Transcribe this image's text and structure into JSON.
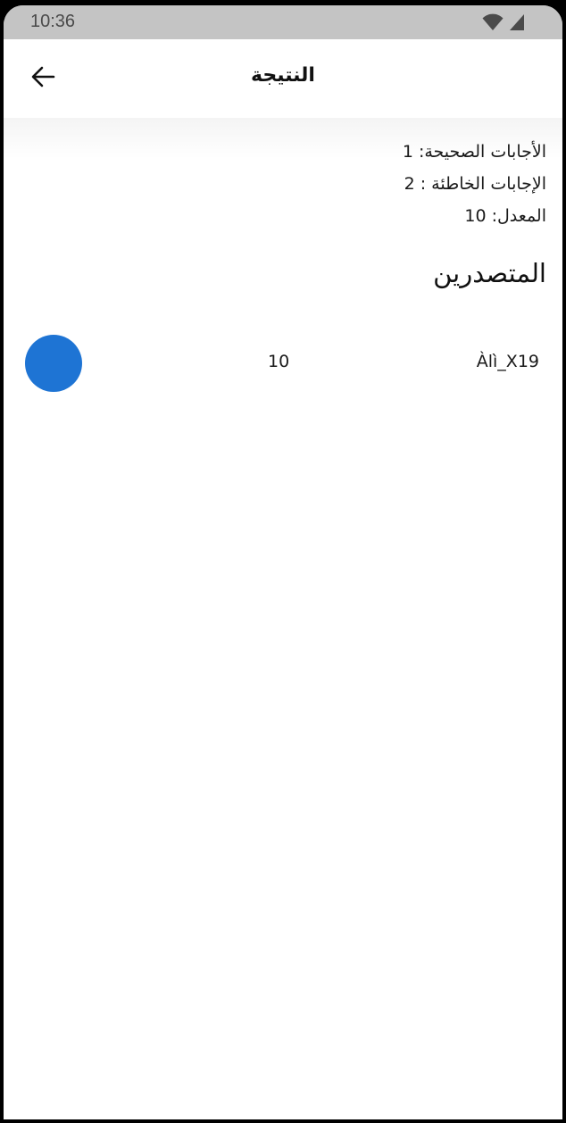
{
  "status_bar": {
    "time": "10:36",
    "icons": [
      "wifi-icon",
      "signal-icon"
    ]
  },
  "app_bar": {
    "title": "النتيجة",
    "back_icon": "arrow-left-icon"
  },
  "results": {
    "correct": "الأجابات الصحيحة: 1",
    "wrong": "الإجابات الخاطئة : 2",
    "average": "المعدل: 10"
  },
  "leaderboard": {
    "title": "المتصدرين",
    "entries": [
      {
        "name": "Àlì_X19",
        "score": "10",
        "avatar_color": "#1e74d4"
      }
    ]
  },
  "colors": {
    "status_bar_bg": "#c4c4c4",
    "background": "#ffffff",
    "text": "#1a1a1a",
    "avatar": "#1e74d4"
  }
}
